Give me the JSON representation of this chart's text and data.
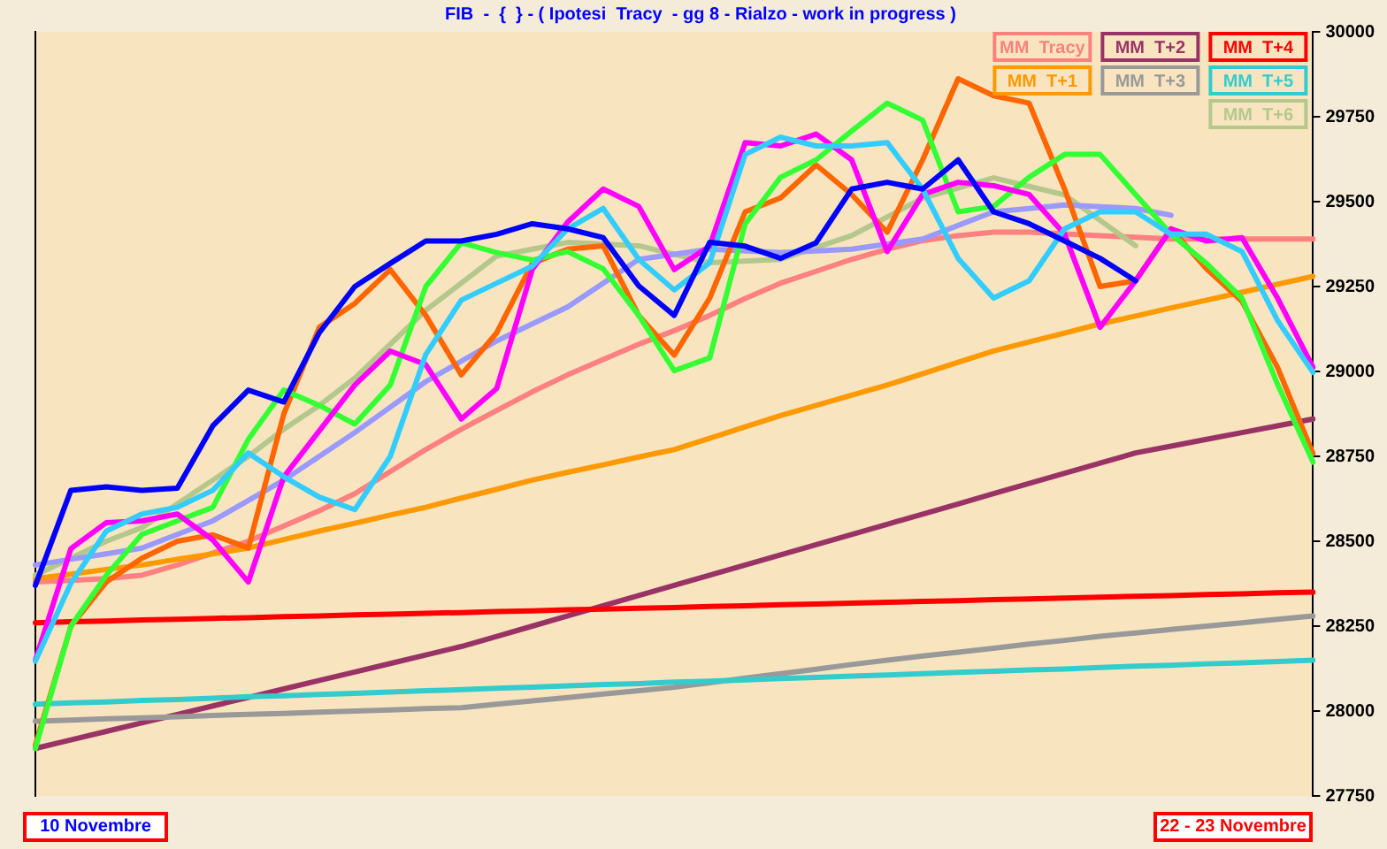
{
  "chart_data": {
    "type": "line",
    "title": "FIB  -  {  } - ( Ipotesi  Tracy  - gg 8 - Rialzo - work in progress )",
    "categories": [
      null,
      null,
      null,
      null,
      null,
      null,
      null,
      null,
      null,
      null,
      null,
      null,
      null,
      null,
      null,
      null,
      null,
      null,
      null,
      null,
      null,
      null,
      null,
      null,
      null,
      null,
      null,
      null,
      null,
      null,
      null,
      null,
      null,
      null,
      null,
      null,
      null
    ],
    "series": [
      {
        "name": "MM  Tracy",
        "color": "#ff8080",
        "values": [
          28380,
          28385,
          28390,
          28400,
          28430,
          28465,
          28500,
          28545,
          28590,
          28640,
          28705,
          28770,
          28830,
          28885,
          28940,
          28990,
          29035,
          29080,
          29120,
          29165,
          29215,
          29260,
          29295,
          29330,
          29360,
          29385,
          29400,
          29410,
          29410,
          29405,
          29400,
          29395,
          29390,
          29390,
          29390,
          29390,
          29390
        ]
      },
      {
        "name": "MM  T+1",
        "color": "#ff9900",
        "values": [
          28390,
          28403,
          28417,
          28430,
          28447,
          28463,
          28480,
          28505,
          28530,
          28553,
          28577,
          28600,
          28627,
          28653,
          28680,
          28703,
          28725,
          28748,
          28770,
          28803,
          28837,
          28870,
          28900,
          28930,
          28960,
          28993,
          29027,
          29060,
          29087,
          29113,
          29140,
          29163,
          29187,
          29210,
          29233,
          29257,
          29280
        ]
      },
      {
        "name": "MM  T+2",
        "color": "#993366",
        "values": [
          27890,
          27915,
          27940,
          27965,
          27990,
          28015,
          28040,
          28065,
          28090,
          28115,
          28140,
          28165,
          28190,
          28220,
          28250,
          28280,
          28310,
          28340,
          28370,
          28400,
          28430,
          28460,
          28490,
          28520,
          28550,
          28580,
          28610,
          28640,
          28670,
          28700,
          28730,
          28760,
          28780,
          28800,
          28820,
          28840,
          28860
        ]
      },
      {
        "name": "MM  T+3",
        "color": "#999999",
        "values": [
          27970,
          27973,
          27977,
          27980,
          27983,
          27987,
          27990,
          27993,
          27997,
          28000,
          28003,
          28007,
          28010,
          28020,
          28030,
          28040,
          28050,
          28060,
          28070,
          28083,
          28097,
          28110,
          28123,
          28137,
          28150,
          28162,
          28173,
          28185,
          28197,
          28208,
          28220,
          28230,
          28240,
          28250,
          28260,
          28270,
          28280
        ]
      },
      {
        "name": "MM  T+4",
        "color": "#ff0000",
        "values": [
          28260,
          28263,
          28265,
          28268,
          28270,
          28273,
          28275,
          28278,
          28280,
          28283,
          28285,
          28288,
          28290,
          28293,
          28295,
          28298,
          28300,
          28303,
          28305,
          28308,
          28310,
          28313,
          28315,
          28318,
          28320,
          28323,
          28325,
          28328,
          28330,
          28333,
          28335,
          28338,
          28340,
          28343,
          28345,
          28348,
          28350
        ]
      },
      {
        "name": "MM  T+5",
        "color": "#33cccc",
        "values": [
          28020,
          28024,
          28027,
          28031,
          28034,
          28038,
          28042,
          28045,
          28049,
          28052,
          28056,
          28060,
          28063,
          28067,
          28070,
          28074,
          28078,
          28081,
          28085,
          28088,
          28092,
          28096,
          28099,
          28103,
          28106,
          28110,
          28114,
          28117,
          28121,
          28124,
          28128,
          28132,
          28135,
          28139,
          28142,
          28146,
          28150
        ]
      },
      {
        "name": "MM  T+6",
        "color": "#b4c88c",
        "values": [
          28400,
          28450,
          28500,
          28540,
          28610,
          28680,
          28750,
          28830,
          28900,
          28980,
          29080,
          29180,
          29260,
          29340,
          29360,
          29380,
          29375,
          29370,
          29345,
          29320,
          29325,
          29330,
          29365,
          29400,
          29455,
          29510,
          29540,
          29570,
          29545,
          29520,
          29445,
          29370,
          null,
          null,
          null,
          null,
          null
        ]
      },
      {
        "color": "#9999ff",
        "values": [
          28430,
          28447,
          28463,
          28480,
          28520,
          28560,
          28620,
          28680,
          28750,
          28820,
          28895,
          28970,
          29030,
          29090,
          29140,
          29190,
          29260,
          29330,
          29345,
          29360,
          29355,
          29350,
          29355,
          29360,
          29375,
          29390,
          29430,
          29470,
          29480,
          29490,
          29485,
          29480,
          29460,
          null,
          null,
          null,
          null
        ]
      },
      {
        "color": "#ff6600",
        "values": [
          27900,
          28250,
          28380,
          28450,
          28500,
          28519,
          28480,
          28875,
          29130,
          29200,
          29300,
          29165,
          28990,
          29114,
          29318,
          29360,
          29370,
          29165,
          29048,
          29216,
          29470,
          29511,
          29608,
          29521,
          29410,
          29623,
          29862,
          29812,
          29790,
          29537,
          29250,
          29267,
          29420,
          29302,
          29206,
          29012,
          28758
        ]
      },
      {
        "color": "#33ff33",
        "values": [
          27890,
          28250,
          28400,
          28520,
          28560,
          28600,
          28800,
          28945,
          28900,
          28845,
          28960,
          29250,
          29379,
          29350,
          29328,
          29353,
          29302,
          29165,
          29002,
          29040,
          29435,
          29572,
          29623,
          29708,
          29790,
          29740,
          29470,
          29486,
          29572,
          29639,
          29639,
          29521,
          29404,
          29318,
          29216,
          28962,
          28733
        ]
      },
      {
        "color": "#ff00ff",
        "values": [
          28150,
          28478,
          28555,
          28560,
          28580,
          28504,
          28380,
          28690,
          28825,
          28960,
          29060,
          29020,
          28860,
          28950,
          29300,
          29440,
          29537,
          29486,
          29300,
          29369,
          29674,
          29664,
          29699,
          29623,
          29353,
          29521,
          29557,
          29547,
          29521,
          29404,
          29130,
          29267,
          29420,
          29384,
          29394,
          29216,
          29012
        ]
      },
      {
        "color": "#33ccff",
        "values": [
          28147,
          28376,
          28530,
          28580,
          28600,
          28650,
          28760,
          28690,
          28630,
          28593,
          28750,
          29050,
          29210,
          29260,
          29310,
          29420,
          29480,
          29330,
          29240,
          29320,
          29639,
          29690,
          29664,
          29664,
          29674,
          29537,
          29333,
          29216,
          29267,
          29420,
          29470,
          29470,
          29404,
          29404,
          29353,
          29150,
          28997
        ]
      },
      {
        "color": "#0000ff",
        "values": [
          28370,
          28650,
          28660,
          28650,
          28656,
          28840,
          28945,
          28910,
          29114,
          29250,
          29318,
          29384,
          29384,
          29404,
          29435,
          29420,
          29394,
          29252,
          29165,
          29380,
          29369,
          29333,
          29379,
          29537,
          29557,
          29537,
          29623,
          29470,
          29435,
          29384,
          29333,
          29267,
          null,
          null,
          null,
          null,
          null
        ]
      }
    ],
    "ylim": [
      27750,
      30000
    ],
    "yticks": [
      27750,
      28000,
      28250,
      28500,
      28750,
      29000,
      29250,
      29500,
      29750,
      30000
    ],
    "grid": false,
    "legend": "top right",
    "tick_labels": "y",
    "marker": "none",
    "line_style": "solid",
    "annotations": [
      "10  Novembre",
      "22 - 23  Novembre"
    ]
  }
}
